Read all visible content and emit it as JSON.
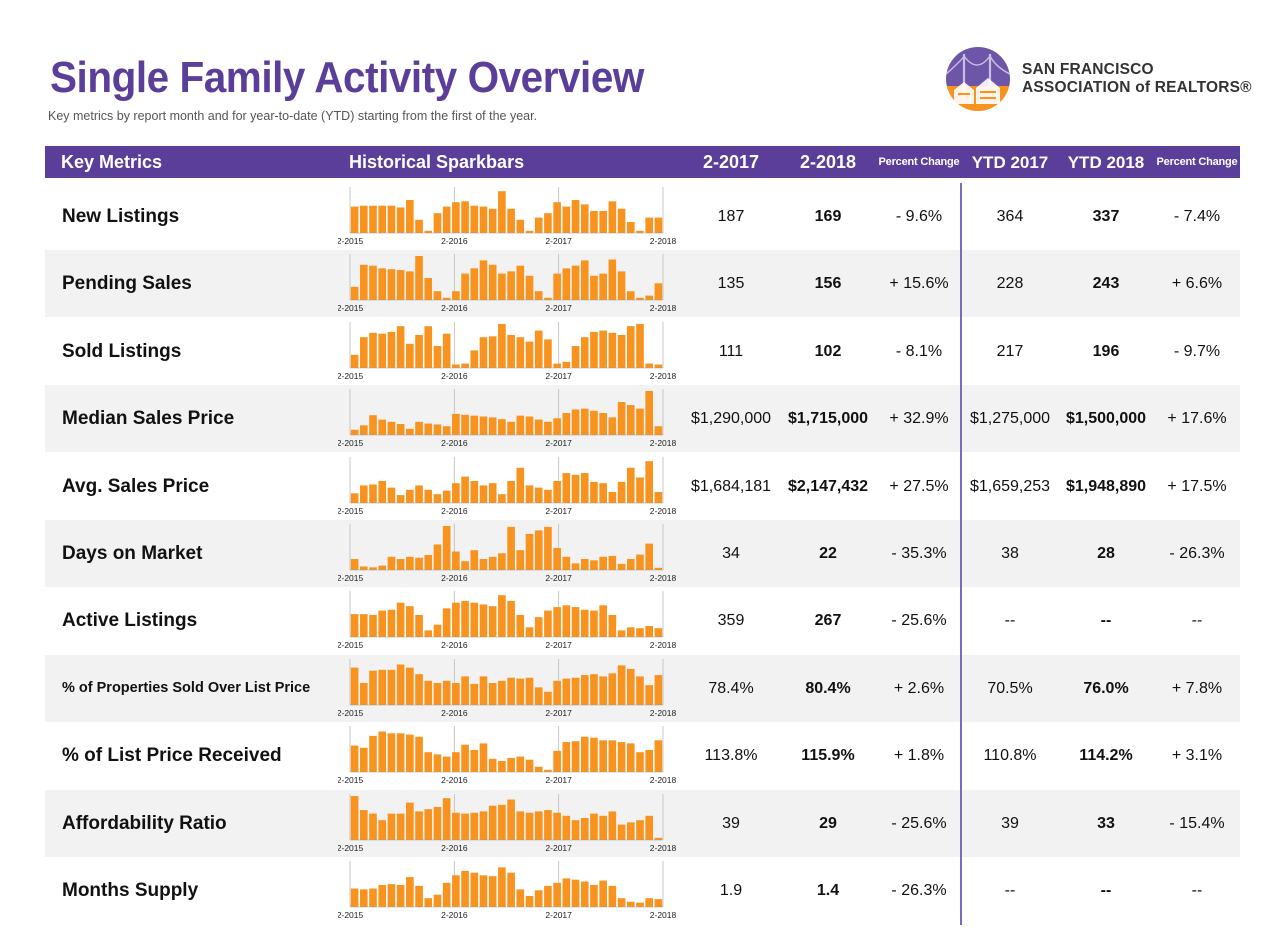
{
  "title": "Single Family Activity Overview",
  "subtitle": "Key metrics by report month and for year-to-date (YTD) starting from the first of the year.",
  "logo": {
    "line1": "SAN FRANCISCO",
    "line2": "ASSOCIATION of REALTORS®"
  },
  "colors": {
    "accent": "#5a3e99",
    "bar": "#f7931e",
    "row_shade": "#f2f2f2",
    "divider": "#7b6bb8"
  },
  "headers": {
    "key_metrics": "Key Metrics",
    "sparkbars": "Historical Sparkbars",
    "month_prev": "2-2017",
    "month_curr": "2-2018",
    "pct_change": "Percent Change",
    "ytd_prev": "YTD 2017",
    "ytd_curr": "YTD 2018",
    "ytd_pct_change": "Percent Change"
  },
  "spark_labels": [
    "2-2015",
    "2-2016",
    "2-2017",
    "2-2018"
  ],
  "metrics": [
    {
      "name": "New Listings",
      "m2017": "187",
      "m2018": "169",
      "pct": "- 9.6%",
      "ytd2017": "364",
      "ytd2018": "337",
      "ytd_pct": "- 7.4%",
      "sparkbars": [
        0.6,
        0.62,
        0.62,
        0.62,
        0.62,
        0.58,
        0.75,
        0.3,
        0.05,
        0.45,
        0.6,
        0.7,
        0.72,
        0.62,
        0.6,
        0.55,
        0.95,
        0.55,
        0.3,
        0.05,
        0.35,
        0.45,
        0.7,
        0.6,
        0.75,
        0.65,
        0.5,
        0.5,
        0.72,
        0.55,
        0.25,
        0.05,
        0.35,
        0.35
      ]
    },
    {
      "name": "Pending Sales",
      "m2017": "135",
      "m2018": "156",
      "pct": "+ 15.6%",
      "ytd2017": "228",
      "ytd2018": "243",
      "ytd_pct": "+ 6.6%",
      "sparkbars": [
        0.3,
        0.8,
        0.78,
        0.72,
        0.7,
        0.68,
        0.65,
        1.0,
        0.5,
        0.2,
        0.05,
        0.2,
        0.6,
        0.72,
        0.9,
        0.8,
        0.6,
        0.65,
        0.78,
        0.55,
        0.2,
        0.05,
        0.6,
        0.72,
        0.78,
        0.9,
        0.55,
        0.6,
        0.92,
        0.65,
        0.2,
        0.05,
        0.1,
        0.38
      ]
    },
    {
      "name": "Sold Listings",
      "m2017": "111",
      "m2018": "102",
      "pct": "- 8.1%",
      "ytd2017": "217",
      "ytd2018": "196",
      "ytd_pct": "- 9.7%",
      "sparkbars": [
        0.3,
        0.7,
        0.8,
        0.78,
        0.82,
        0.95,
        0.55,
        0.75,
        0.95,
        0.5,
        0.78,
        0.08,
        0.1,
        0.4,
        0.7,
        0.72,
        1.0,
        0.75,
        0.7,
        0.6,
        0.85,
        0.65,
        0.1,
        0.14,
        0.5,
        0.7,
        0.82,
        0.85,
        0.8,
        0.75,
        0.95,
        1.0,
        0.1,
        0.08
      ]
    },
    {
      "name": "Median Sales Price",
      "m2017": "$1,290,000",
      "m2018": "$1,715,000",
      "pct": "+ 32.9%",
      "ytd2017": "$1,275,000",
      "ytd2018": "$1,500,000",
      "ytd_pct": "+ 17.6%",
      "sparkbars": [
        0.12,
        0.22,
        0.45,
        0.35,
        0.3,
        0.25,
        0.14,
        0.3,
        0.26,
        0.24,
        0.2,
        0.48,
        0.46,
        0.44,
        0.42,
        0.4,
        0.36,
        0.3,
        0.44,
        0.42,
        0.35,
        0.3,
        0.38,
        0.5,
        0.58,
        0.6,
        0.55,
        0.5,
        0.4,
        0.75,
        0.68,
        0.6,
        1.0,
        0.2
      ]
    },
    {
      "name": "Avg. Sales Price",
      "m2017": "$1,684,181",
      "m2018": "$2,147,432",
      "pct": "+ 27.5%",
      "ytd2017": "$1,659,253",
      "ytd2018": "$1,948,890",
      "ytd_pct": "+ 17.5%",
      "sparkbars": [
        0.22,
        0.4,
        0.42,
        0.5,
        0.35,
        0.18,
        0.3,
        0.4,
        0.3,
        0.2,
        0.28,
        0.45,
        0.6,
        0.5,
        0.4,
        0.45,
        0.2,
        0.5,
        0.8,
        0.4,
        0.35,
        0.3,
        0.5,
        0.68,
        0.64,
        0.68,
        0.48,
        0.45,
        0.25,
        0.48,
        0.8,
        0.58,
        0.95,
        0.25
      ]
    },
    {
      "name": "Days on Market",
      "m2017": "34",
      "m2018": "22",
      "pct": "- 35.3%",
      "ytd2017": "38",
      "ytd2018": "28",
      "ytd_pct": "- 26.3%",
      "sparkbars": [
        0.25,
        0.08,
        0.06,
        0.1,
        0.3,
        0.25,
        0.3,
        0.28,
        0.34,
        0.58,
        1.0,
        0.42,
        0.2,
        0.45,
        0.25,
        0.3,
        0.38,
        0.98,
        0.45,
        0.82,
        0.9,
        0.98,
        0.5,
        0.3,
        0.15,
        0.25,
        0.22,
        0.3,
        0.32,
        0.14,
        0.25,
        0.35,
        0.6,
        0.05
      ]
    },
    {
      "name": "Active Listings",
      "m2017": "359",
      "m2018": "267",
      "pct": "- 25.6%",
      "ytd2017": "--",
      "ytd2018": "--",
      "ytd_pct": "--",
      "sparkbars": [
        0.52,
        0.52,
        0.5,
        0.6,
        0.62,
        0.78,
        0.7,
        0.5,
        0.15,
        0.28,
        0.65,
        0.78,
        0.82,
        0.78,
        0.74,
        0.7,
        0.95,
        0.82,
        0.5,
        0.22,
        0.45,
        0.6,
        0.68,
        0.72,
        0.68,
        0.62,
        0.6,
        0.72,
        0.5,
        0.15,
        0.22,
        0.2,
        0.25,
        0.2
      ]
    },
    {
      "name": "% of Properties Sold Over List Price",
      "m2017": "78.4%",
      "m2018": "80.4%",
      "pct": "+ 2.6%",
      "ytd2017": "70.5%",
      "ytd2018": "76.0%",
      "ytd_pct": "+ 7.8%",
      "sparkbars": [
        0.85,
        0.5,
        0.78,
        0.8,
        0.8,
        0.92,
        0.85,
        0.7,
        0.55,
        0.5,
        0.55,
        0.5,
        0.65,
        0.48,
        0.65,
        0.5,
        0.55,
        0.62,
        0.6,
        0.62,
        0.4,
        0.3,
        0.55,
        0.6,
        0.62,
        0.68,
        0.7,
        0.65,
        0.72,
        0.9,
        0.82,
        0.65,
        0.45,
        0.68
      ]
    },
    {
      "name": "% of List Price Received",
      "m2017": "113.8%",
      "m2018": "115.9%",
      "pct": "+ 1.8%",
      "ytd2017": "110.8%",
      "ytd2018": "114.2%",
      "ytd_pct": "+ 3.1%",
      "sparkbars": [
        0.6,
        0.55,
        0.82,
        0.92,
        0.88,
        0.88,
        0.85,
        0.8,
        0.45,
        0.4,
        0.35,
        0.45,
        0.62,
        0.5,
        0.65,
        0.3,
        0.25,
        0.32,
        0.35,
        0.28,
        0.12,
        0.05,
        0.48,
        0.68,
        0.7,
        0.8,
        0.78,
        0.72,
        0.72,
        0.68,
        0.65,
        0.45,
        0.5,
        0.72
      ]
    },
    {
      "name": "Affordability Ratio",
      "m2017": "39",
      "m2018": "29",
      "pct": "- 25.6%",
      "ytd2017": "39",
      "ytd2018": "33",
      "ytd_pct": "- 15.4%",
      "sparkbars": [
        1.0,
        0.68,
        0.6,
        0.45,
        0.6,
        0.6,
        0.85,
        0.65,
        0.7,
        0.75,
        0.95,
        0.62,
        0.6,
        0.62,
        0.65,
        0.78,
        0.8,
        0.92,
        0.65,
        0.62,
        0.65,
        0.68,
        0.62,
        0.55,
        0.45,
        0.5,
        0.6,
        0.55,
        0.65,
        0.35,
        0.4,
        0.45,
        0.55,
        0.05
      ]
    },
    {
      "name": "Months Supply",
      "m2017": "1.9",
      "m2018": "1.4",
      "pct": "- 26.3%",
      "ytd2017": "--",
      "ytd2018": "--",
      "ytd_pct": "--",
      "sparkbars": [
        0.42,
        0.4,
        0.42,
        0.5,
        0.52,
        0.5,
        0.68,
        0.48,
        0.2,
        0.28,
        0.55,
        0.72,
        0.82,
        0.78,
        0.72,
        0.7,
        0.9,
        0.78,
        0.4,
        0.25,
        0.38,
        0.48,
        0.55,
        0.65,
        0.62,
        0.58,
        0.5,
        0.6,
        0.48,
        0.2,
        0.12,
        0.1,
        0.2,
        0.18
      ]
    }
  ]
}
